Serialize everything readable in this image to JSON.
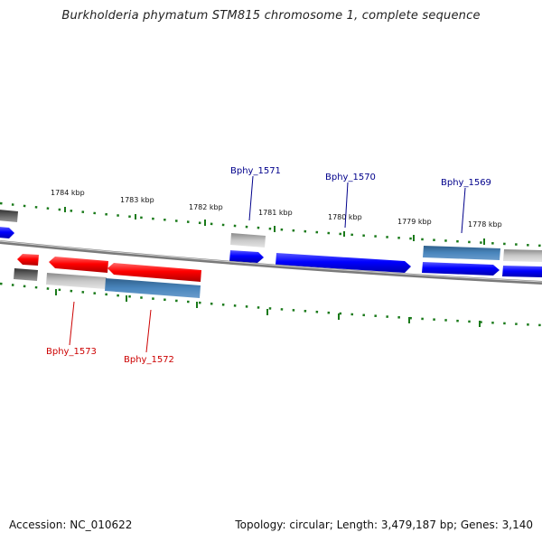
{
  "title": "Burkholderia phymatum STM815 chromosome 1, complete sequence",
  "accession": "Accession: NC_010622",
  "summary": "Topology: circular; Length: 3,479,187 bp; Genes: 3,140",
  "scale": {
    "tick_labels": [
      "1784 kbp",
      "1783 kbp",
      "1782 kbp",
      "1781 kbp",
      "1780 kbp",
      "1779 kbp",
      "1778 kbp"
    ]
  },
  "genes": {
    "forward_labels": [
      "Bphy_1571",
      "Bphy_1570",
      "Bphy_1569"
    ],
    "reverse_labels": [
      "Bphy_1573",
      "Bphy_1572"
    ]
  },
  "colors": {
    "forward": "#0000ff",
    "forward_highlight": "#4a7fb0",
    "reverse": "#ff0000",
    "reverse_highlight": "#4a7fb0",
    "rna_gray": "#bbbbbb",
    "dark_gray": "#555555",
    "ticks": "#1a7a1a",
    "backbone": "#888888",
    "forward_label": "#00008b",
    "reverse_label": "#cc0000"
  }
}
